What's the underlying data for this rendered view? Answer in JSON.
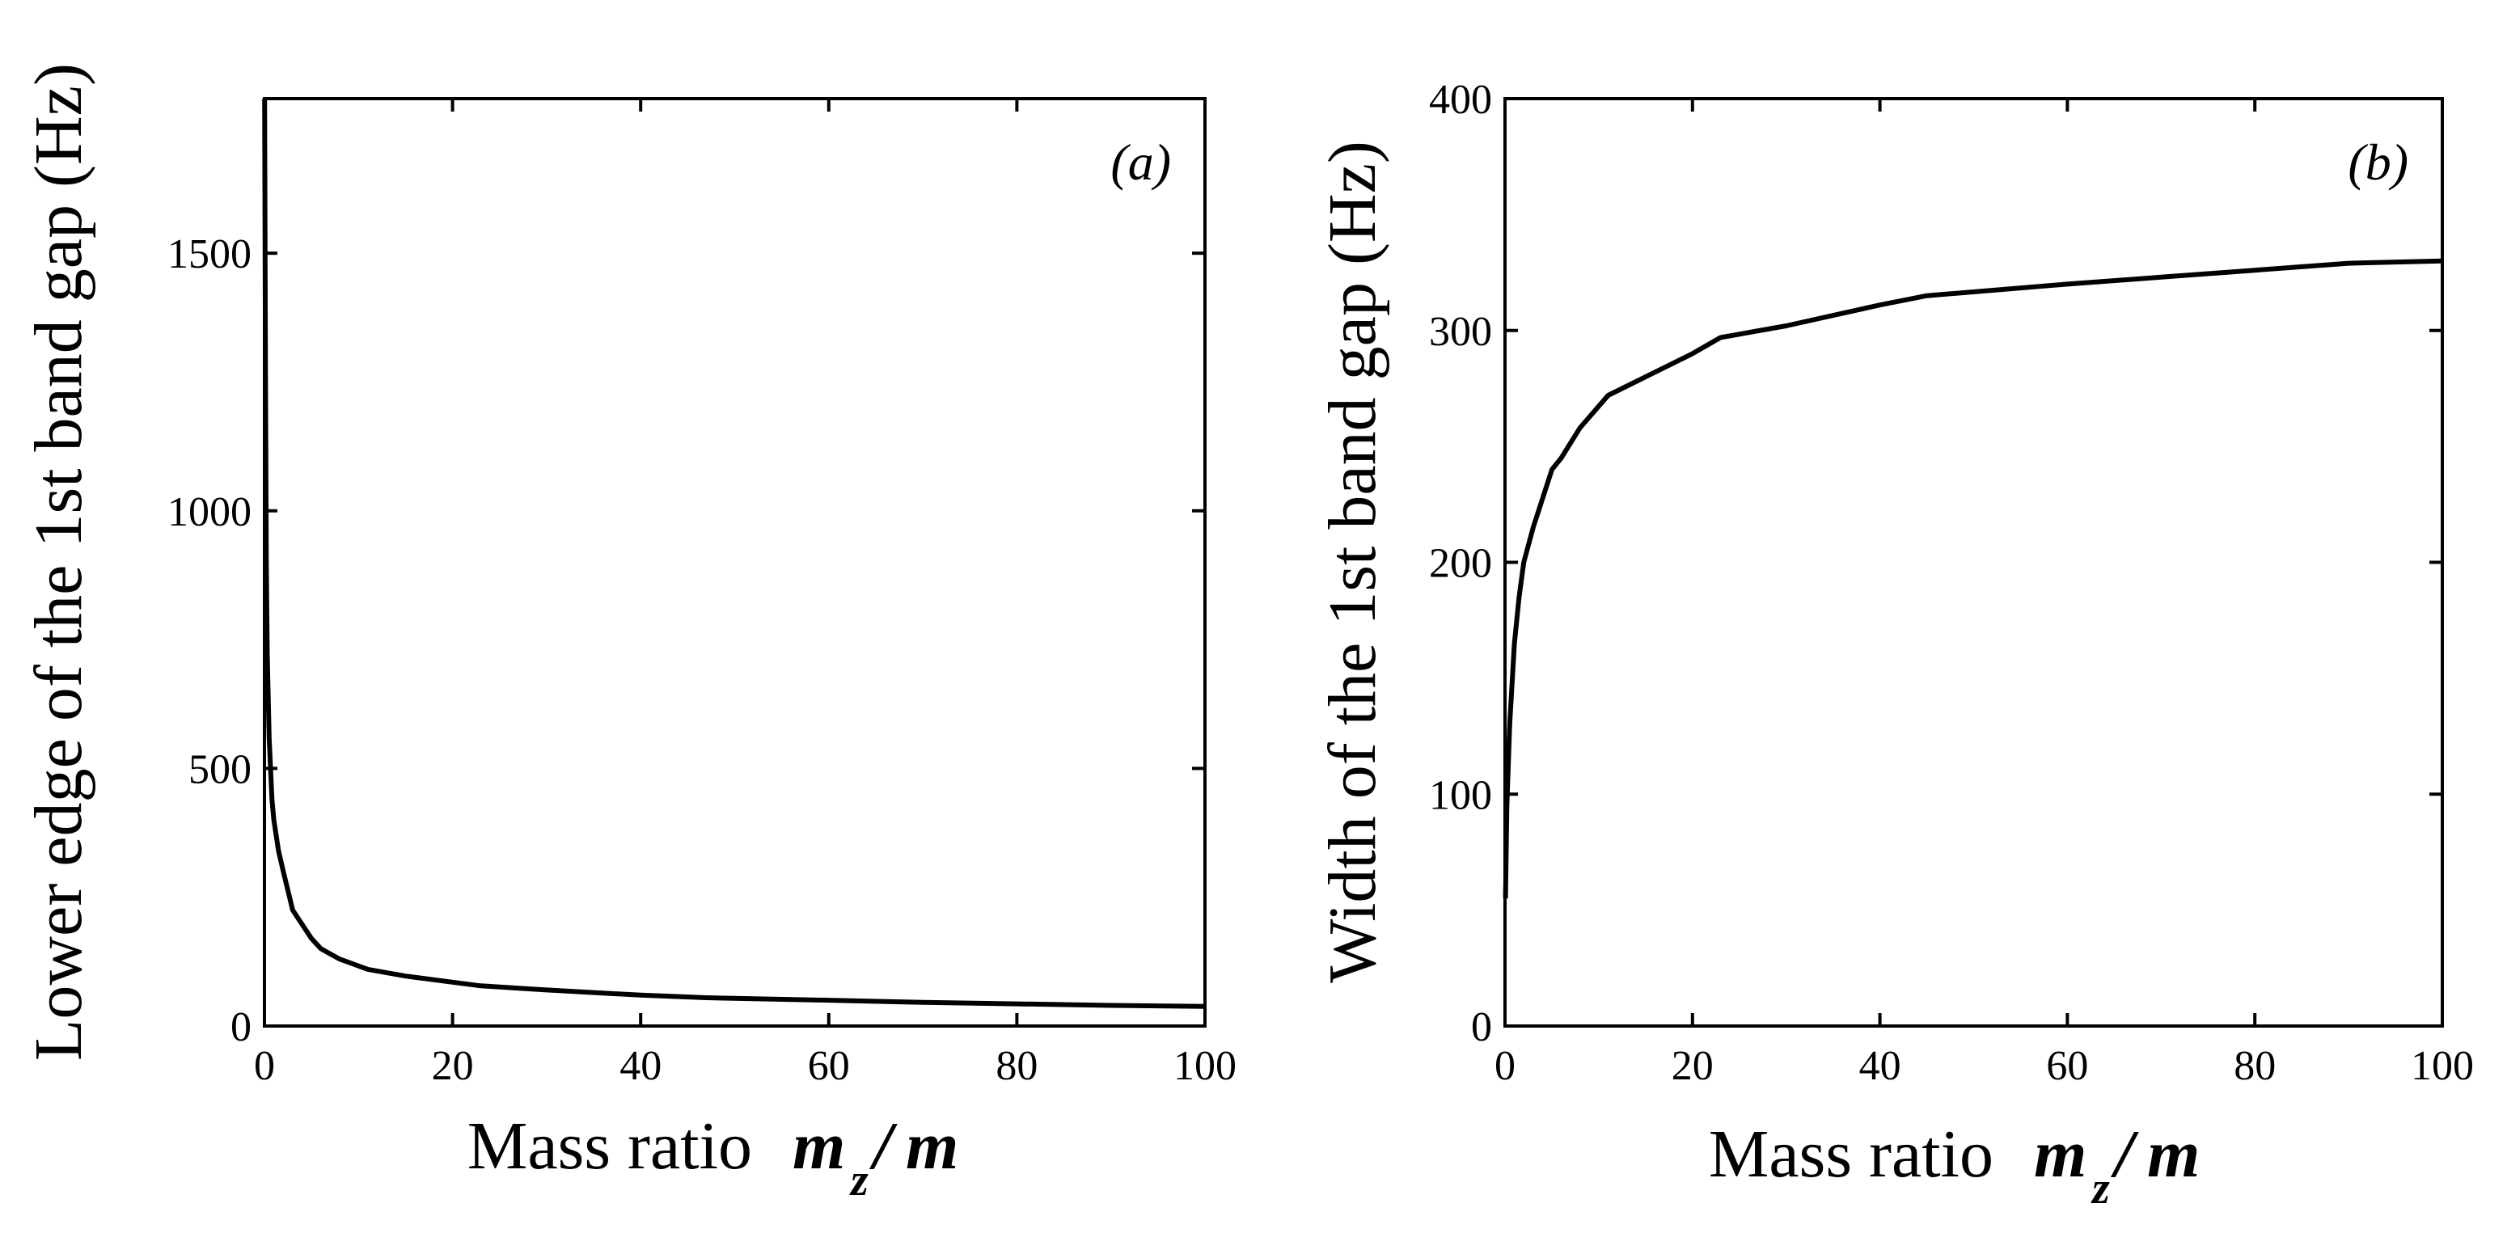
{
  "chart_data": [
    {
      "type": "line",
      "panel_label": "(a)",
      "xlabel": "Mass ratio",
      "xlabel_math": {
        "m": "m",
        "sub": "z",
        "slash": "/",
        "den": "m"
      },
      "ylabel": "Lower edge of the 1st band gap (Hz)",
      "xlim": [
        0,
        100
      ],
      "ylim": [
        0,
        1800
      ],
      "xticks": [
        "0",
        "20",
        "40",
        "60",
        "80",
        "100"
      ],
      "yticks": [
        "0",
        "500",
        "1000",
        "1500"
      ],
      "x": [
        0.02,
        0.1,
        0.2,
        0.3,
        0.5,
        0.8,
        1.0,
        1.5,
        2,
        3,
        5,
        6,
        8,
        11,
        15,
        20,
        23,
        30,
        40,
        47,
        60,
        70,
        80,
        90,
        100
      ],
      "y": [
        1800,
        1300,
        900,
        720,
        560,
        440,
        400,
        340,
        300,
        225,
        170,
        150,
        130,
        110,
        97,
        85,
        78,
        70,
        60,
        55,
        50,
        46,
        43,
        40,
        38
      ]
    },
    {
      "type": "line",
      "panel_label": "(b)",
      "xlabel": "Mass ratio",
      "xlabel_math": {
        "m": "m",
        "sub": "z",
        "slash": "/",
        "den": "m"
      },
      "ylabel": "Width of the 1st band gap (Hz)",
      "xlim": [
        0,
        100
      ],
      "ylim": [
        0,
        400
      ],
      "xticks": [
        "0",
        "20",
        "40",
        "60",
        "80",
        "100"
      ],
      "yticks": [
        "0",
        "100",
        "200",
        "300",
        "400"
      ],
      "x": [
        0.05,
        0.2,
        0.5,
        1,
        1.5,
        2,
        3,
        5,
        6,
        8,
        11,
        15,
        20,
        23,
        30,
        40,
        45,
        60,
        70,
        80,
        90,
        100
      ],
      "y": [
        55,
        95,
        130,
        165,
        185,
        200,
        215,
        240,
        245,
        258,
        272,
        280,
        290,
        297,
        302,
        311,
        315,
        320,
        323,
        326,
        329,
        330
      ]
    }
  ]
}
